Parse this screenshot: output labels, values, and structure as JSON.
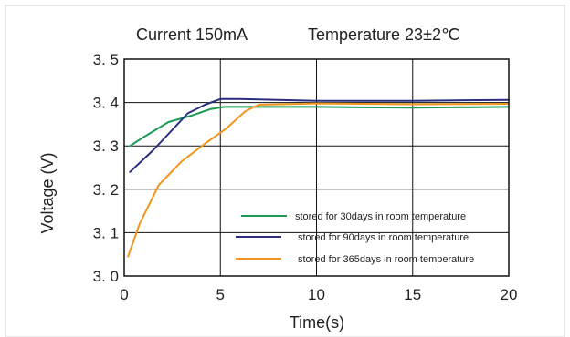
{
  "chart_data": {
    "type": "line",
    "title": "Current 150mA",
    "subtitle": "Temperature 23±2℃",
    "xlabel": "Time(s)",
    "ylabel": "Voltage (V)",
    "xlim": [
      0,
      20
    ],
    "ylim": [
      3.0,
      3.5
    ],
    "x_ticks": [
      "0",
      "5",
      "10",
      "15",
      "20"
    ],
    "y_ticks": [
      "3. 0",
      "3. 1",
      "3. 2",
      "3. 3",
      "3. 4",
      "3. 5"
    ],
    "x_tick_values": [
      0,
      5,
      10,
      15,
      20
    ],
    "y_tick_values": [
      3.0,
      3.1,
      3.2,
      3.3,
      3.4,
      3.5
    ],
    "grid": true,
    "legend_position": "bottom-right",
    "series": [
      {
        "name": "stored for 30days in room temperature",
        "color": "#1a9a55",
        "x": [
          0.3,
          1.0,
          2.3,
          3.5,
          4.5,
          5.2,
          7,
          10,
          15,
          20
        ],
        "y": [
          3.3,
          3.32,
          3.355,
          3.37,
          3.385,
          3.39,
          3.39,
          3.39,
          3.388,
          3.39
        ]
      },
      {
        "name": "stored for 90days in room temperature",
        "color": "#2b2e80",
        "x": [
          0.3,
          1.5,
          3.3,
          4.2,
          5.0,
          6,
          10,
          15,
          20
        ],
        "y": [
          3.24,
          3.29,
          3.375,
          3.395,
          3.408,
          3.408,
          3.404,
          3.404,
          3.406
        ]
      },
      {
        "name": "stored for 365days in room temperature",
        "color": "#f0961e",
        "x": [
          0.2,
          0.8,
          1.8,
          3.0,
          4.2,
          5.3,
          6.3,
          7.0,
          10,
          15,
          20
        ],
        "y": [
          3.045,
          3.12,
          3.21,
          3.265,
          3.305,
          3.34,
          3.38,
          3.395,
          3.398,
          3.396,
          3.397
        ]
      }
    ]
  }
}
